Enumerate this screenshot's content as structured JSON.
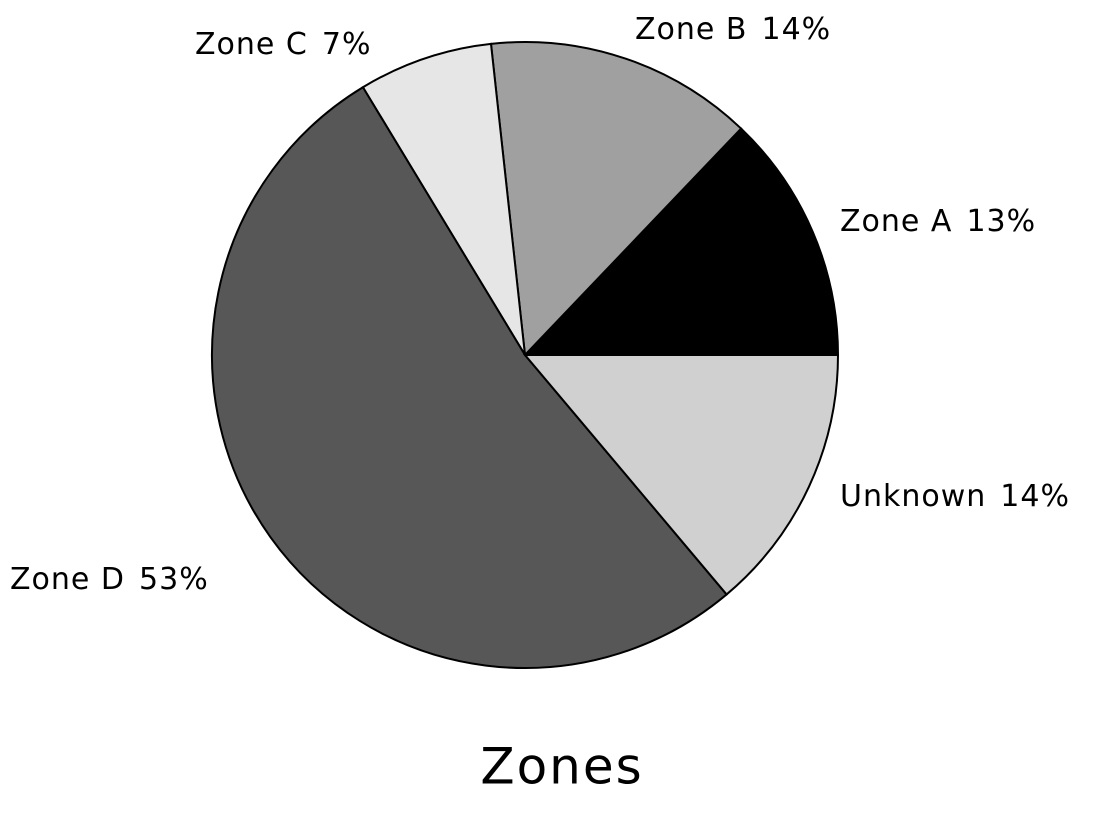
{
  "chart_data": {
    "type": "pie",
    "title": "Zones",
    "categories": [
      "Zone A",
      "Zone B",
      "Zone C",
      "Zone D",
      "Unknown"
    ],
    "values": [
      13,
      14,
      7,
      53,
      14
    ],
    "value_labels": [
      "13%",
      "14%",
      "7%",
      "53%",
      "14%"
    ],
    "colors": [
      "#000000",
      "#a0a0a0",
      "#e6e6e6",
      "#575757",
      "#d0d0d0"
    ]
  }
}
